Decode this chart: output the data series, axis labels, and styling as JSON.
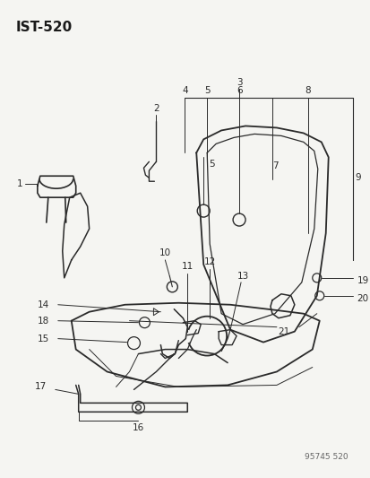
{
  "title": "IST-520",
  "watermark": "95745 520",
  "bg_color": "#f5f5f2",
  "line_color": "#2a2a2a",
  "title_color": "#1a1a1a"
}
